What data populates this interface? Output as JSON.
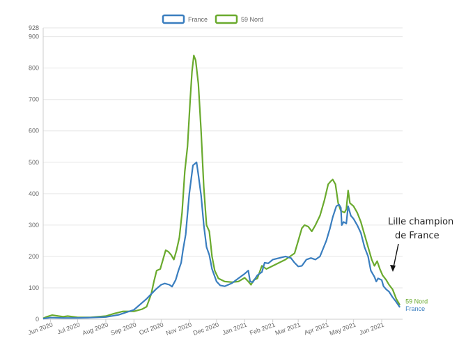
{
  "chart_data": {
    "type": "line",
    "title": "",
    "xlabel": "",
    "ylabel": "",
    "x_ticks": [
      "Jun 2020",
      "Jul 2020",
      "Aug 2020",
      "Sep 2020",
      "Oct 2020",
      "Nov 2020",
      "Dec 2020",
      "Jan 2021",
      "Feb 2021",
      "Mar 2021",
      "Apr 2021",
      "May 2021",
      "Jun 2021"
    ],
    "y_ticks": [
      0,
      100,
      200,
      300,
      400,
      500,
      600,
      700,
      800,
      900
    ],
    "y_max_label": "928",
    "ylim": [
      0,
      928
    ],
    "xlim": [
      "2020-05-24",
      "2021-06-24"
    ],
    "grid": true,
    "legend_position": "top-center",
    "annotation": {
      "lines": [
        "Lille champion",
        "de France"
      ],
      "x": "2021-06-05",
      "y": 145
    },
    "series": [
      {
        "name": "France",
        "color": "#3a7ebf",
        "end_label": "France",
        "points": [
          [
            "2020-05-24",
            2
          ],
          [
            "2020-06-01",
            5
          ],
          [
            "2020-06-15",
            4
          ],
          [
            "2020-07-01",
            4
          ],
          [
            "2020-07-15",
            5
          ],
          [
            "2020-08-01",
            7
          ],
          [
            "2020-08-15",
            14
          ],
          [
            "2020-09-01",
            30
          ],
          [
            "2020-09-15",
            65
          ],
          [
            "2020-09-25",
            95
          ],
          [
            "2020-10-01",
            110
          ],
          [
            "2020-10-05",
            114
          ],
          [
            "2020-10-10",
            110
          ],
          [
            "2020-10-13",
            104
          ],
          [
            "2020-10-17",
            125
          ],
          [
            "2020-10-20",
            155
          ],
          [
            "2020-10-23",
            180
          ],
          [
            "2020-10-25",
            220
          ],
          [
            "2020-10-28",
            270
          ],
          [
            "2020-11-01",
            400
          ],
          [
            "2020-11-05",
            490
          ],
          [
            "2020-11-09",
            500
          ],
          [
            "2020-11-11",
            460
          ],
          [
            "2020-11-14",
            395
          ],
          [
            "2020-11-17",
            300
          ],
          [
            "2020-11-20",
            230
          ],
          [
            "2020-11-23",
            205
          ],
          [
            "2020-11-26",
            160
          ],
          [
            "2020-12-01",
            120
          ],
          [
            "2020-12-05",
            108
          ],
          [
            "2020-12-10",
            105
          ],
          [
            "2020-12-18",
            115
          ],
          [
            "2020-12-25",
            130
          ],
          [
            "2021-01-01",
            145
          ],
          [
            "2021-01-05",
            155
          ],
          [
            "2021-01-07",
            120
          ],
          [
            "2021-01-10",
            118
          ],
          [
            "2021-01-15",
            140
          ],
          [
            "2021-01-20",
            150
          ],
          [
            "2021-01-23",
            180
          ],
          [
            "2021-01-27",
            178
          ],
          [
            "2021-02-01",
            190
          ],
          [
            "2021-02-08",
            195
          ],
          [
            "2021-02-15",
            200
          ],
          [
            "2021-02-21",
            195
          ],
          [
            "2021-02-25",
            180
          ],
          [
            "2021-03-01",
            168
          ],
          [
            "2021-03-05",
            170
          ],
          [
            "2021-03-10",
            190
          ],
          [
            "2021-03-15",
            195
          ],
          [
            "2021-03-20",
            190
          ],
          [
            "2021-03-25",
            200
          ],
          [
            "2021-04-01",
            250
          ],
          [
            "2021-04-05",
            290
          ],
          [
            "2021-04-08",
            325
          ],
          [
            "2021-04-12",
            360
          ],
          [
            "2021-04-15",
            365
          ],
          [
            "2021-04-17",
            355
          ],
          [
            "2021-04-18",
            300
          ],
          [
            "2021-04-20",
            310
          ],
          [
            "2021-04-23",
            305
          ],
          [
            "2021-04-25",
            360
          ],
          [
            "2021-04-28",
            330
          ],
          [
            "2021-05-01",
            320
          ],
          [
            "2021-05-05",
            300
          ],
          [
            "2021-05-09",
            275
          ],
          [
            "2021-05-13",
            230
          ],
          [
            "2021-05-17",
            200
          ],
          [
            "2021-05-20",
            155
          ],
          [
            "2021-05-24",
            135
          ],
          [
            "2021-05-26",
            120
          ],
          [
            "2021-05-28",
            130
          ],
          [
            "2021-06-01",
            125
          ],
          [
            "2021-06-03",
            105
          ],
          [
            "2021-06-06",
            95
          ],
          [
            "2021-06-09",
            88
          ],
          [
            "2021-06-13",
            70
          ],
          [
            "2021-06-17",
            55
          ],
          [
            "2021-06-21",
            38
          ]
        ]
      },
      {
        "name": "59 Nord",
        "color": "#6aaa2e",
        "end_label": "59 Nord",
        "points": [
          [
            "2020-05-24",
            3
          ],
          [
            "2020-05-28",
            8
          ],
          [
            "2020-06-03",
            13
          ],
          [
            "2020-06-10",
            10
          ],
          [
            "2020-06-15",
            8
          ],
          [
            "2020-06-20",
            10
          ],
          [
            "2020-07-01",
            6
          ],
          [
            "2020-07-15",
            6
          ],
          [
            "2020-08-01",
            10
          ],
          [
            "2020-08-10",
            18
          ],
          [
            "2020-08-20",
            25
          ],
          [
            "2020-09-01",
            25
          ],
          [
            "2020-09-10",
            32
          ],
          [
            "2020-09-15",
            40
          ],
          [
            "2020-09-20",
            80
          ],
          [
            "2020-09-23",
            120
          ],
          [
            "2020-09-26",
            155
          ],
          [
            "2020-09-30",
            160
          ],
          [
            "2020-10-03",
            190
          ],
          [
            "2020-10-06",
            220
          ],
          [
            "2020-10-09",
            215
          ],
          [
            "2020-10-12",
            205
          ],
          [
            "2020-10-15",
            190
          ],
          [
            "2020-10-18",
            220
          ],
          [
            "2020-10-21",
            260
          ],
          [
            "2020-10-24",
            340
          ],
          [
            "2020-10-27",
            470
          ],
          [
            "2020-10-30",
            550
          ],
          [
            "2020-11-02",
            700
          ],
          [
            "2020-11-04",
            790
          ],
          [
            "2020-11-06",
            840
          ],
          [
            "2020-11-08",
            825
          ],
          [
            "2020-11-11",
            750
          ],
          [
            "2020-11-14",
            600
          ],
          [
            "2020-11-17",
            420
          ],
          [
            "2020-11-20",
            300
          ],
          [
            "2020-11-23",
            280
          ],
          [
            "2020-11-26",
            200
          ],
          [
            "2020-11-29",
            155
          ],
          [
            "2020-12-03",
            130
          ],
          [
            "2020-12-10",
            120
          ],
          [
            "2020-12-18",
            118
          ],
          [
            "2020-12-25",
            120
          ],
          [
            "2021-01-01",
            132
          ],
          [
            "2021-01-05",
            120
          ],
          [
            "2021-01-08",
            110
          ],
          [
            "2021-01-11",
            125
          ],
          [
            "2021-01-15",
            130
          ],
          [
            "2021-01-20",
            170
          ],
          [
            "2021-01-25",
            160
          ],
          [
            "2021-02-01",
            170
          ],
          [
            "2021-02-08",
            180
          ],
          [
            "2021-02-15",
            190
          ],
          [
            "2021-02-20",
            200
          ],
          [
            "2021-02-25",
            210
          ],
          [
            "2021-03-01",
            250
          ],
          [
            "2021-03-05",
            290
          ],
          [
            "2021-03-08",
            300
          ],
          [
            "2021-03-12",
            295
          ],
          [
            "2021-03-16",
            280
          ],
          [
            "2021-03-20",
            300
          ],
          [
            "2021-03-25",
            330
          ],
          [
            "2021-03-30",
            380
          ],
          [
            "2021-04-03",
            430
          ],
          [
            "2021-04-06",
            440
          ],
          [
            "2021-04-08",
            445
          ],
          [
            "2021-04-11",
            430
          ],
          [
            "2021-04-14",
            370
          ],
          [
            "2021-04-17",
            345
          ],
          [
            "2021-04-21",
            340
          ],
          [
            "2021-04-23",
            350
          ],
          [
            "2021-04-25",
            410
          ],
          [
            "2021-04-27",
            370
          ],
          [
            "2021-05-01",
            360
          ],
          [
            "2021-05-05",
            340
          ],
          [
            "2021-05-09",
            310
          ],
          [
            "2021-05-13",
            270
          ],
          [
            "2021-05-17",
            230
          ],
          [
            "2021-05-21",
            190
          ],
          [
            "2021-05-24",
            170
          ],
          [
            "2021-05-27",
            185
          ],
          [
            "2021-05-30",
            160
          ],
          [
            "2021-06-02",
            140
          ],
          [
            "2021-06-06",
            125
          ],
          [
            "2021-06-09",
            110
          ],
          [
            "2021-06-13",
            95
          ],
          [
            "2021-06-17",
            65
          ],
          [
            "2021-06-21",
            45
          ]
        ]
      }
    ]
  }
}
